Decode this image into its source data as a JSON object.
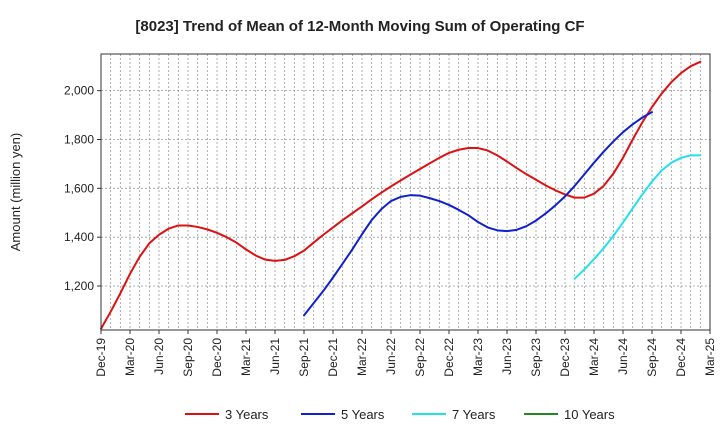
{
  "chart_data": {
    "type": "line",
    "title": "[8023]  Trend of Mean of 12-Month Moving Sum of Operating CF",
    "xlabel": "",
    "ylabel": "Amount (million yen)",
    "ylim": [
      1020,
      2150
    ],
    "yticks": [
      1200,
      1400,
      1600,
      1800,
      2000
    ],
    "ytick_labels": [
      "1,200",
      "1,400",
      "1,600",
      "1,800",
      "2,000"
    ],
    "x_start": "Dec-19",
    "x_end": "Mar-25",
    "xtick_labels": [
      "Dec-19",
      "Mar-20",
      "Jun-20",
      "Sep-20",
      "Dec-20",
      "Mar-21",
      "Jun-21",
      "Sep-21",
      "Dec-21",
      "Mar-22",
      "Jun-22",
      "Sep-22",
      "Dec-22",
      "Mar-23",
      "Jun-23",
      "Sep-23",
      "Dec-23",
      "Mar-24",
      "Jun-24",
      "Sep-24",
      "Dec-24",
      "Mar-25"
    ],
    "grid": true,
    "legend_position": "bottom",
    "series": [
      {
        "name": "3 Years",
        "color": "#dd1111",
        "start_month_index": 0,
        "values": [
          1025,
          1095,
          1170,
          1250,
          1320,
          1375,
          1410,
          1435,
          1448,
          1448,
          1442,
          1432,
          1418,
          1400,
          1378,
          1350,
          1325,
          1308,
          1303,
          1307,
          1322,
          1345,
          1378,
          1410,
          1440,
          1470,
          1498,
          1526,
          1555,
          1582,
          1608,
          1632,
          1656,
          1679,
          1702,
          1725,
          1745,
          1758,
          1765,
          1765,
          1755,
          1735,
          1710,
          1683,
          1658,
          1635,
          1612,
          1592,
          1575,
          1562,
          1562,
          1578,
          1610,
          1660,
          1725,
          1800,
          1870,
          1933,
          1988,
          2035,
          2072,
          2100,
          2118
        ]
      },
      {
        "name": "5 Years",
        "color": "#1020cc",
        "start_month_index": 21,
        "values": [
          1080,
          1130,
          1180,
          1235,
          1292,
          1350,
          1412,
          1470,
          1515,
          1548,
          1565,
          1572,
          1570,
          1560,
          1548,
          1532,
          1512,
          1490,
          1462,
          1440,
          1428,
          1425,
          1430,
          1445,
          1468,
          1497,
          1530,
          1567,
          1610,
          1657,
          1705,
          1750,
          1792,
          1830,
          1862,
          1890,
          1912
        ]
      },
      {
        "name": "7 Years",
        "color": "#22e0ee",
        "start_month_index": 49,
        "values": [
          1230,
          1268,
          1310,
          1355,
          1405,
          1460,
          1518,
          1575,
          1628,
          1673,
          1705,
          1725,
          1735,
          1735
        ]
      },
      {
        "name": "10 Years",
        "color": "#228822",
        "start_month_index": 0,
        "values": []
      }
    ]
  }
}
